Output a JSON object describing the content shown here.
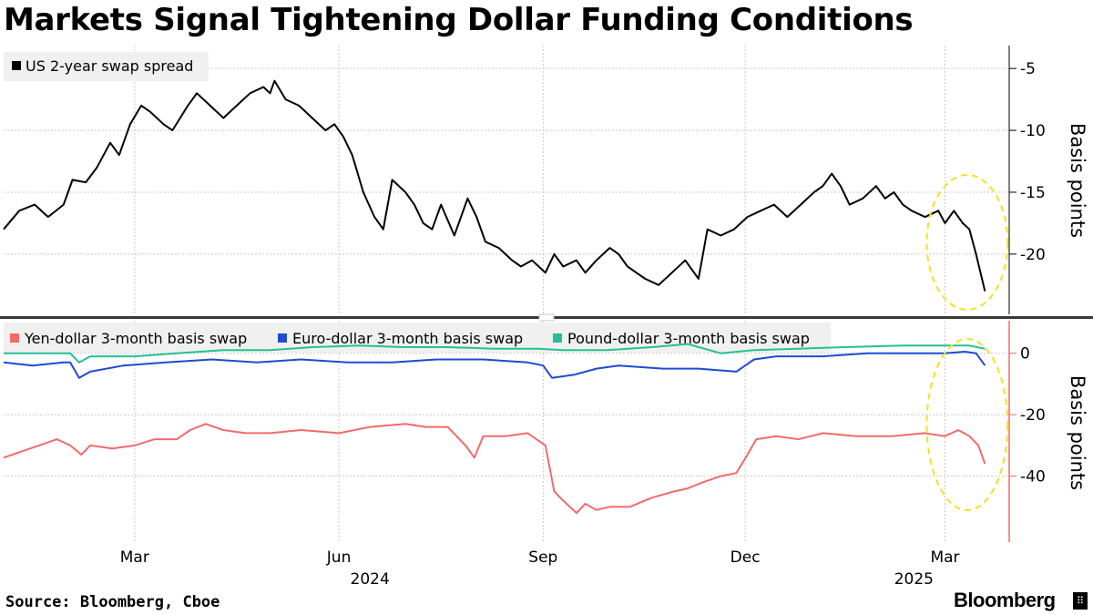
{
  "title": "Markets Signal Tightening Dollar Funding Conditions",
  "source": "Source: Bloomberg, Cboe",
  "brand": "Bloomberg",
  "colors": {
    "us_spread": "#000000",
    "yen": "#f26b6b",
    "euro": "#1e4bd2",
    "pound": "#26bf96",
    "highlight": "#f5e020",
    "grid": "#c8c8c8"
  },
  "chart_data": [
    {
      "type": "line",
      "ylabel": "Basis points",
      "ylim": [
        -24.5,
        -3
      ],
      "yticks": [
        -5,
        -10,
        -15,
        -20
      ],
      "xlim": [
        "2024-01-02",
        "2025-03-25"
      ],
      "xticks": [
        {
          "label": "Mar",
          "date": "2024-03-01"
        },
        {
          "label": "Jun",
          "date": "2024-06-01"
        },
        {
          "label": "Sep",
          "date": "2024-09-01"
        },
        {
          "label": "Dec",
          "date": "2024-12-01"
        },
        {
          "label": "Mar",
          "date": "2025-03-01"
        }
      ],
      "year_labels": [
        {
          "label": "2024",
          "date": "2024-06-15"
        },
        {
          "label": "2025",
          "date": "2025-02-15"
        }
      ],
      "highlight": {
        "from": "2025-03-01",
        "to": "2025-03-21"
      },
      "series": [
        {
          "name": "US 2-year swap spread",
          "color": "#000000",
          "points": [
            [
              "2024-01-02",
              -18.0
            ],
            [
              "2024-01-09",
              -16.5
            ],
            [
              "2024-01-16",
              -16.0
            ],
            [
              "2024-01-22",
              -17.0
            ],
            [
              "2024-01-29",
              -16.0
            ],
            [
              "2024-02-02",
              -14.0
            ],
            [
              "2024-02-08",
              -14.2
            ],
            [
              "2024-02-13",
              -13.0
            ],
            [
              "2024-02-19",
              -11.0
            ],
            [
              "2024-02-23",
              -12.0
            ],
            [
              "2024-02-28",
              -9.5
            ],
            [
              "2024-03-04",
              -8.0
            ],
            [
              "2024-03-08",
              -8.5
            ],
            [
              "2024-03-14",
              -9.5
            ],
            [
              "2024-03-18",
              -10.0
            ],
            [
              "2024-03-25",
              -8.0
            ],
            [
              "2024-03-29",
              -7.0
            ],
            [
              "2024-04-04",
              -8.0
            ],
            [
              "2024-04-10",
              -9.0
            ],
            [
              "2024-04-16",
              -8.0
            ],
            [
              "2024-04-22",
              -7.0
            ],
            [
              "2024-04-28",
              -6.5
            ],
            [
              "2024-05-01",
              -7.0
            ],
            [
              "2024-05-03",
              -6.0
            ],
            [
              "2024-05-08",
              -7.5
            ],
            [
              "2024-05-14",
              -8.0
            ],
            [
              "2024-05-20",
              -9.0
            ],
            [
              "2024-05-26",
              -10.0
            ],
            [
              "2024-05-30",
              -9.5
            ],
            [
              "2024-06-03",
              -10.5
            ],
            [
              "2024-06-07",
              -12.0
            ],
            [
              "2024-06-12",
              -15.0
            ],
            [
              "2024-06-17",
              -17.0
            ],
            [
              "2024-06-21",
              -18.0
            ],
            [
              "2024-06-25",
              -14.0
            ],
            [
              "2024-07-01",
              -15.0
            ],
            [
              "2024-07-05",
              -16.0
            ],
            [
              "2024-07-09",
              -17.5
            ],
            [
              "2024-07-13",
              -18.0
            ],
            [
              "2024-07-17",
              -16.0
            ],
            [
              "2024-07-23",
              -18.5
            ],
            [
              "2024-07-29",
              -15.5
            ],
            [
              "2024-08-02",
              -17.0
            ],
            [
              "2024-08-06",
              -19.0
            ],
            [
              "2024-08-12",
              -19.5
            ],
            [
              "2024-08-18",
              -20.5
            ],
            [
              "2024-08-22",
              -21.0
            ],
            [
              "2024-08-27",
              -20.5
            ],
            [
              "2024-09-02",
              -21.5
            ],
            [
              "2024-09-06",
              -20.0
            ],
            [
              "2024-09-10",
              -21.0
            ],
            [
              "2024-09-16",
              -20.5
            ],
            [
              "2024-09-20",
              -21.5
            ],
            [
              "2024-09-25",
              -20.5
            ],
            [
              "2024-10-01",
              -19.5
            ],
            [
              "2024-10-05",
              -20.0
            ],
            [
              "2024-10-09",
              -21.0
            ],
            [
              "2024-10-13",
              -21.5
            ],
            [
              "2024-10-17",
              -22.0
            ],
            [
              "2024-10-23",
              -22.5
            ],
            [
              "2024-10-29",
              -21.5
            ],
            [
              "2024-11-04",
              -20.5
            ],
            [
              "2024-11-10",
              -22.0
            ],
            [
              "2024-11-14",
              -18.0
            ],
            [
              "2024-11-20",
              -18.5
            ],
            [
              "2024-11-26",
              -18.0
            ],
            [
              "2024-12-02",
              -17.0
            ],
            [
              "2024-12-08",
              -16.5
            ],
            [
              "2024-12-14",
              -16.0
            ],
            [
              "2024-12-20",
              -17.0
            ],
            [
              "2024-12-26",
              -16.0
            ],
            [
              "2025-01-01",
              -15.0
            ],
            [
              "2025-01-05",
              -14.5
            ],
            [
              "2025-01-09",
              -13.5
            ],
            [
              "2025-01-13",
              -14.5
            ],
            [
              "2025-01-17",
              -16.0
            ],
            [
              "2025-01-23",
              -15.5
            ],
            [
              "2025-01-29",
              -14.5
            ],
            [
              "2025-02-02",
              -15.5
            ],
            [
              "2025-02-06",
              -15.0
            ],
            [
              "2025-02-10",
              -16.0
            ],
            [
              "2025-02-14",
              -16.5
            ],
            [
              "2025-02-20",
              -17.0
            ],
            [
              "2025-02-26",
              -16.5
            ],
            [
              "2025-03-01",
              -17.5
            ],
            [
              "2025-03-05",
              -16.5
            ],
            [
              "2025-03-09",
              -17.5
            ],
            [
              "2025-03-12",
              -18.0
            ],
            [
              "2025-03-15",
              -20.0
            ],
            [
              "2025-03-19",
              -23.0
            ]
          ]
        }
      ]
    },
    {
      "type": "line",
      "ylabel": "Basis points",
      "ylim": [
        -60,
        10
      ],
      "yticks": [
        0,
        -20,
        -40
      ],
      "xlim": [
        "2024-01-02",
        "2025-03-25"
      ],
      "highlight": {
        "from": "2025-03-01",
        "to": "2025-03-21"
      },
      "series": [
        {
          "name": "Yen-dollar 3-month basis swap",
          "color": "#f26b6b",
          "points": [
            [
              "2024-01-02",
              -34.0
            ],
            [
              "2024-01-10",
              -32.0
            ],
            [
              "2024-01-18",
              -30.0
            ],
            [
              "2024-01-26",
              -28.0
            ],
            [
              "2024-02-01",
              -30.0
            ],
            [
              "2024-02-06",
              -33.0
            ],
            [
              "2024-02-10",
              -30.0
            ],
            [
              "2024-02-20",
              -31.0
            ],
            [
              "2024-03-01",
              -30.0
            ],
            [
              "2024-03-10",
              -28.0
            ],
            [
              "2024-03-20",
              -28.0
            ],
            [
              "2024-03-26",
              -25.0
            ],
            [
              "2024-04-02",
              -23.0
            ],
            [
              "2024-04-10",
              -25.0
            ],
            [
              "2024-04-20",
              -26.0
            ],
            [
              "2024-05-01",
              -26.0
            ],
            [
              "2024-05-15",
              -25.0
            ],
            [
              "2024-06-01",
              -26.0
            ],
            [
              "2024-06-15",
              -24.0
            ],
            [
              "2024-07-01",
              -23.0
            ],
            [
              "2024-07-10",
              -24.0
            ],
            [
              "2024-07-20",
              -24.0
            ],
            [
              "2024-07-28",
              -30.0
            ],
            [
              "2024-08-01",
              -34.0
            ],
            [
              "2024-08-05",
              -27.0
            ],
            [
              "2024-08-15",
              -27.0
            ],
            [
              "2024-08-25",
              -26.0
            ],
            [
              "2024-09-02",
              -30.0
            ],
            [
              "2024-09-06",
              -45.0
            ],
            [
              "2024-09-10",
              -48.0
            ],
            [
              "2024-09-16",
              -52.0
            ],
            [
              "2024-09-20",
              -49.0
            ],
            [
              "2024-09-25",
              -51.0
            ],
            [
              "2024-10-01",
              -50.0
            ],
            [
              "2024-10-10",
              -50.0
            ],
            [
              "2024-10-20",
              -47.0
            ],
            [
              "2024-10-30",
              -45.0
            ],
            [
              "2024-11-05",
              -44.0
            ],
            [
              "2024-11-12",
              -42.0
            ],
            [
              "2024-11-20",
              -40.0
            ],
            [
              "2024-11-27",
              -39.0
            ],
            [
              "2024-12-02",
              -33.0
            ],
            [
              "2024-12-06",
              -28.0
            ],
            [
              "2024-12-15",
              -27.0
            ],
            [
              "2024-12-25",
              -28.0
            ],
            [
              "2025-01-05",
              -26.0
            ],
            [
              "2025-01-20",
              -27.0
            ],
            [
              "2025-02-05",
              -27.0
            ],
            [
              "2025-02-20",
              -26.0
            ],
            [
              "2025-03-01",
              -27.0
            ],
            [
              "2025-03-07",
              -25.0
            ],
            [
              "2025-03-12",
              -27.0
            ],
            [
              "2025-03-16",
              -30.0
            ],
            [
              "2025-03-19",
              -36.0
            ]
          ]
        },
        {
          "name": "Euro-dollar 3-month basis swap",
          "color": "#1e4bd2",
          "points": [
            [
              "2024-01-02",
              -3.0
            ],
            [
              "2024-01-15",
              -4.0
            ],
            [
              "2024-01-29",
              -3.0
            ],
            [
              "2024-02-01",
              -3.0
            ],
            [
              "2024-02-05",
              -8.0
            ],
            [
              "2024-02-10",
              -6.0
            ],
            [
              "2024-02-25",
              -4.0
            ],
            [
              "2024-03-15",
              -3.0
            ],
            [
              "2024-04-05",
              -2.0
            ],
            [
              "2024-04-25",
              -3.0
            ],
            [
              "2024-05-15",
              -2.0
            ],
            [
              "2024-06-05",
              -3.0
            ],
            [
              "2024-06-25",
              -3.0
            ],
            [
              "2024-07-15",
              -2.0
            ],
            [
              "2024-08-05",
              -2.0
            ],
            [
              "2024-08-25",
              -3.0
            ],
            [
              "2024-09-01",
              -4.0
            ],
            [
              "2024-09-05",
              -8.0
            ],
            [
              "2024-09-15",
              -7.0
            ],
            [
              "2024-09-25",
              -5.0
            ],
            [
              "2024-10-05",
              -4.0
            ],
            [
              "2024-10-25",
              -5.0
            ],
            [
              "2024-11-10",
              -5.0
            ],
            [
              "2024-11-27",
              -6.0
            ],
            [
              "2024-12-05",
              -2.0
            ],
            [
              "2024-12-15",
              -1.0
            ],
            [
              "2025-01-05",
              -1.0
            ],
            [
              "2025-01-25",
              0.0
            ],
            [
              "2025-02-15",
              0.0
            ],
            [
              "2025-03-01",
              0.0
            ],
            [
              "2025-03-10",
              0.5
            ],
            [
              "2025-03-15",
              0.0
            ],
            [
              "2025-03-19",
              -4.0
            ]
          ]
        },
        {
          "name": "Pound-dollar 3-month basis swap",
          "color": "#26bf96",
          "points": [
            [
              "2024-01-02",
              0.0
            ],
            [
              "2024-01-20",
              0.0
            ],
            [
              "2024-02-01",
              0.0
            ],
            [
              "2024-02-05",
              -3.0
            ],
            [
              "2024-02-10",
              -1.0
            ],
            [
              "2024-03-01",
              -1.0
            ],
            [
              "2024-03-20",
              0.0
            ],
            [
              "2024-04-10",
              1.0
            ],
            [
              "2024-05-01",
              1.0
            ],
            [
              "2024-05-20",
              2.0
            ],
            [
              "2024-06-10",
              2.5
            ],
            [
              "2024-06-30",
              2.0
            ],
            [
              "2024-07-20",
              2.0
            ],
            [
              "2024-08-10",
              1.5
            ],
            [
              "2024-08-30",
              1.5
            ],
            [
              "2024-09-10",
              1.0
            ],
            [
              "2024-09-30",
              1.0
            ],
            [
              "2024-10-20",
              2.0
            ],
            [
              "2024-11-05",
              3.0
            ],
            [
              "2024-11-20",
              0.0
            ],
            [
              "2024-12-05",
              1.0
            ],
            [
              "2024-12-25",
              1.5
            ],
            [
              "2025-01-15",
              2.0
            ],
            [
              "2025-02-10",
              2.5
            ],
            [
              "2025-03-01",
              2.5
            ],
            [
              "2025-03-12",
              2.5
            ],
            [
              "2025-03-19",
              1.5
            ]
          ]
        }
      ]
    }
  ]
}
